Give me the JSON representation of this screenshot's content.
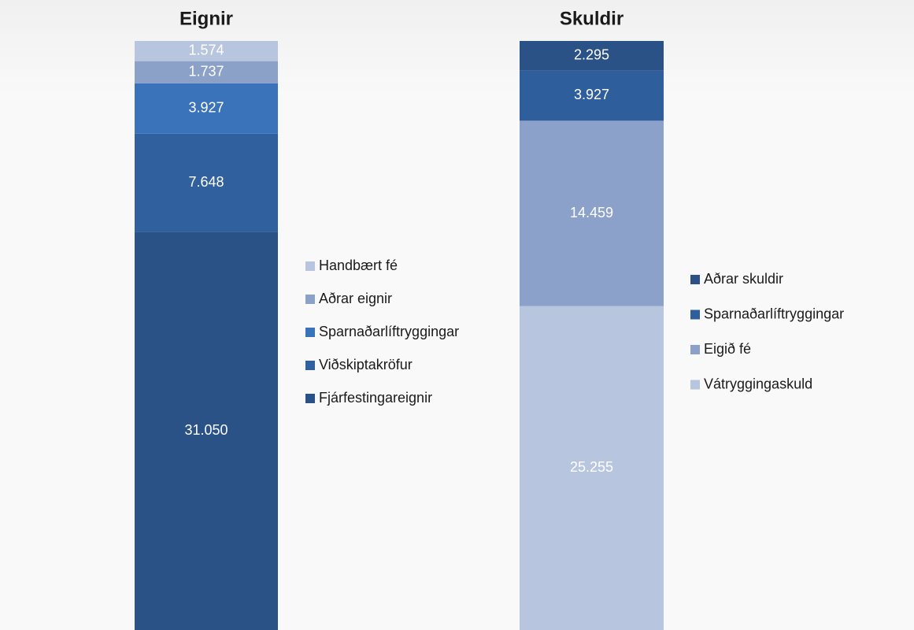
{
  "chart_data": [
    {
      "type": "stacked_bar",
      "title": "Eignir",
      "series": [
        {
          "name": "Fjárfestingareignir",
          "color": "#2a5286",
          "values": [
            31050
          ],
          "value_labels": [
            "31.050"
          ]
        },
        {
          "name": "Viðskiptakröfur",
          "color": "#30619e",
          "values": [
            7648
          ],
          "value_labels": [
            "7.648"
          ]
        },
        {
          "name": "Sparnaðarlíftryggingar",
          "color": "#3a73b9",
          "values": [
            3927
          ],
          "value_labels": [
            "3.927"
          ]
        },
        {
          "name": "Aðrar eignir",
          "color": "#8ba1c8",
          "values": [
            1737
          ],
          "value_labels": [
            "1.737"
          ]
        },
        {
          "name": "Handbært fé",
          "color": "#b8c5de",
          "values": [
            1574
          ],
          "value_labels": [
            "1.574"
          ]
        }
      ]
    },
    {
      "type": "stacked_bar",
      "title": "Skuldir",
      "series": [
        {
          "name": "Vátryggingaskuld",
          "color": "#b8c5de",
          "values": [
            25255
          ],
          "value_labels": [
            "25.255"
          ]
        },
        {
          "name": "Eigið fé",
          "color": "#8ca1c9",
          "values": [
            14459
          ],
          "value_labels": [
            "14.459"
          ]
        },
        {
          "name": "Sparnaðarlíftryggingar",
          "color": "#2e5f9c",
          "values": [
            3927
          ],
          "value_labels": [
            "3.927"
          ]
        },
        {
          "name": "Aðrar skuldir",
          "color": "#2a5286",
          "values": [
            2295
          ],
          "value_labels": [
            "2.295"
          ]
        }
      ]
    }
  ]
}
